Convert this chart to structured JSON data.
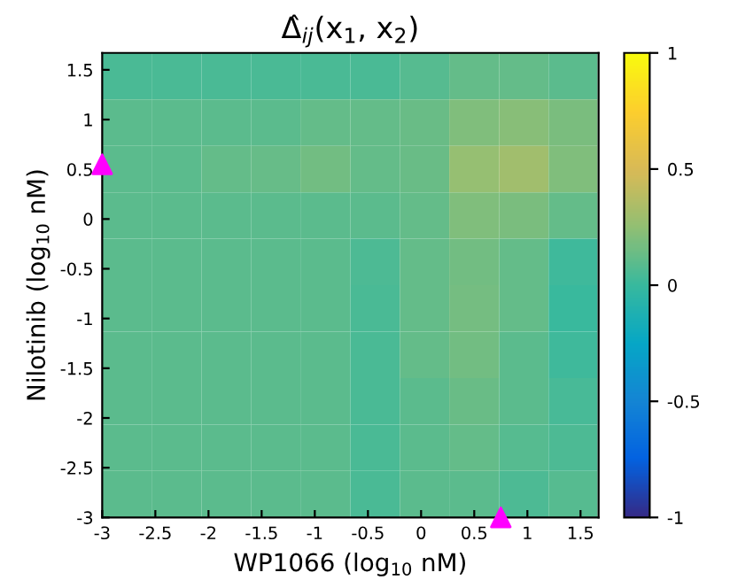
{
  "chart_data": {
    "type": "heatmap",
    "title": "Δ̂$_{ij}$(x$_{1}$, x$_{2}$)",
    "xlabel": "WP1066 (log$_{10}$ nM)",
    "ylabel": "Nilotinib (log$_{10}$ nM)",
    "x": [
      -2.77,
      -2.3,
      -1.83,
      -1.37,
      -0.9,
      -0.43,
      0.03,
      0.5,
      0.97,
      1.43
    ],
    "xlim": [
      -3,
      1.67
    ],
    "ylim": [
      -3,
      1.67
    ],
    "xticks": [
      -3,
      -2.5,
      -2,
      -1.5,
      -1,
      -0.5,
      0,
      0.5,
      1,
      1.5
    ],
    "yticks": [
      -3,
      -2.5,
      -2,
      -1.5,
      -1,
      -0.5,
      0,
      0.5,
      1,
      1.5
    ],
    "cells": [
      [
        0.05,
        0.05,
        0.05,
        0.05,
        0.05,
        0.05,
        0.08,
        0.12,
        0.12,
        0.1
      ],
      [
        0.1,
        0.1,
        0.1,
        0.1,
        0.12,
        0.12,
        0.14,
        0.2,
        0.22,
        0.18
      ],
      [
        0.1,
        0.1,
        0.12,
        0.13,
        0.16,
        0.12,
        0.14,
        0.26,
        0.3,
        0.2
      ],
      [
        0.1,
        0.1,
        0.1,
        0.1,
        0.1,
        0.1,
        0.12,
        0.2,
        0.18,
        0.12
      ],
      [
        0.1,
        0.1,
        0.1,
        0.1,
        0.1,
        0.06,
        0.12,
        0.16,
        0.12,
        0.02
      ],
      [
        0.1,
        0.1,
        0.1,
        0.1,
        0.1,
        0.05,
        0.12,
        0.17,
        0.12,
        0.0
      ],
      [
        0.1,
        0.1,
        0.1,
        0.1,
        0.1,
        0.05,
        0.12,
        0.16,
        0.1,
        0.02
      ],
      [
        0.1,
        0.1,
        0.1,
        0.1,
        0.1,
        0.05,
        0.1,
        0.14,
        0.1,
        0.04
      ],
      [
        0.1,
        0.1,
        0.1,
        0.1,
        0.1,
        0.05,
        0.1,
        0.12,
        0.08,
        0.06
      ],
      [
        0.1,
        0.1,
        0.1,
        0.1,
        0.1,
        0.05,
        0.1,
        0.1,
        0.06,
        0.08
      ]
    ],
    "clim": [
      -1,
      1
    ],
    "cticks": [
      -1,
      -0.5,
      0,
      0.5,
      1
    ],
    "series": [
      {
        "type": "scatter",
        "color": "#ff00ff",
        "marker": "triangle",
        "x": [
          -3,
          0.75
        ],
        "values": [
          0.55,
          -3
        ]
      }
    ]
  }
}
